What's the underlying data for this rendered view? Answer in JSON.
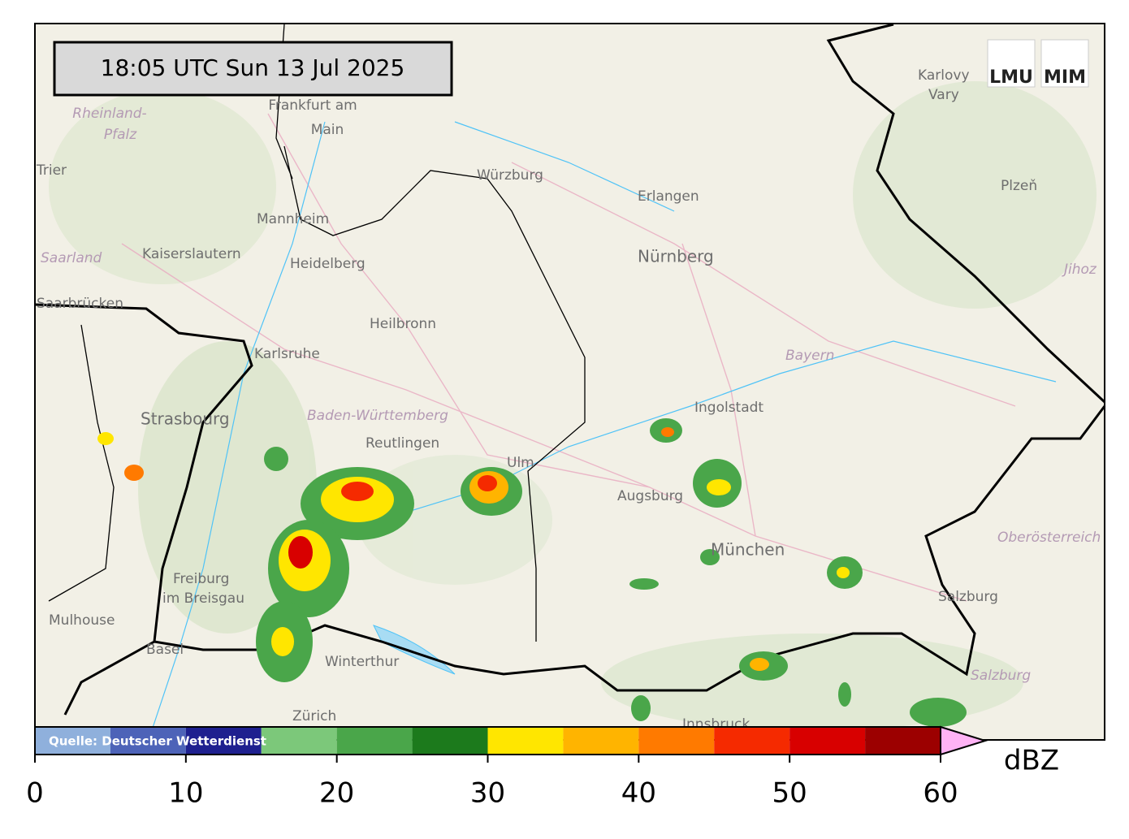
{
  "timestamp": "18:05 UTC  Sun 13 Jul 2025",
  "logos": [
    "LMU",
    "MIM"
  ],
  "source": "Quelle: Deutscher Wetterdienst",
  "places": [
    "Frankfurt am",
    "Main",
    "Rheinland-",
    "Pfalz",
    "Trier",
    "Saarland",
    "Kaiserslautern",
    "Mannheim",
    "Heidelberg",
    "Saarbrücken",
    "Karlsruhe",
    "Heilbronn",
    "Würzburg",
    "Erlangen",
    "Nürnberg",
    "Karlovy",
    "Vary",
    "Plzeň",
    "Jihoz",
    "Bayern",
    "Ingolstadt",
    "Strasbourg",
    "Baden-Württemberg",
    "Reutlingen",
    "Ulm",
    "Augsburg",
    "München",
    "Oberösterreich",
    "Freiburg",
    "im Breisgau",
    "Mulhouse",
    "Basel",
    "Salzburg",
    "Salzburg",
    "Winterthur",
    "Zürich",
    "Innsbruck"
  ],
  "colorbar": {
    "unit": "dBZ",
    "lim": [
      0,
      60
    ],
    "ticks": [
      0,
      10,
      20,
      30,
      40,
      50,
      60
    ],
    "bounds": [
      0,
      5,
      10,
      15,
      20,
      25,
      30,
      35,
      40,
      45,
      50,
      55,
      60
    ],
    "colors": [
      "#8fb0dc",
      "#4d63b8",
      "#1e208f",
      "#7cc87a",
      "#4aa64a",
      "#1c7a1c",
      "#ffe600",
      "#ffb400",
      "#ff7a00",
      "#f52a00",
      "#d80000",
      "#9c0000"
    ],
    "extend_color": "#ffb3f5"
  }
}
